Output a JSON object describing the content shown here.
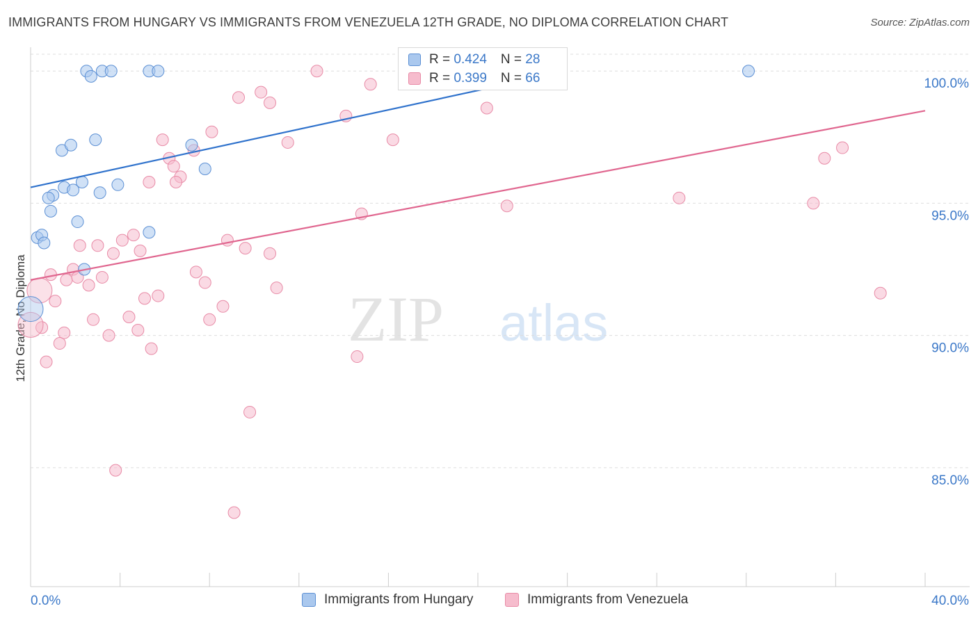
{
  "title": "IMMIGRANTS FROM HUNGARY VS IMMIGRANTS FROM VENEZUELA 12TH GRADE, NO DIPLOMA CORRELATION CHART",
  "source": "Source: ZipAtlas.com",
  "watermark": {
    "zip": "ZIP",
    "atlas": "atlas"
  },
  "legend": {
    "hungary": {
      "r_label": "R = ",
      "r_value": "0.424",
      "n_label": "N = ",
      "n_value": "28"
    },
    "venezuela": {
      "r_label": "R = ",
      "r_value": "0.399",
      "n_label": "N = ",
      "n_value": "66"
    }
  },
  "colors": {
    "hungary_fill": "#aac8ee",
    "hungary_stroke": "#5b8fd4",
    "hungary_line": "#2f72cc",
    "venezuela_fill": "#f6bccd",
    "venezuela_stroke": "#e88aa6",
    "venezuela_line": "#e0668f",
    "axis_text": "#3b78c8",
    "grid": "#dddddd"
  },
  "chart_data": {
    "type": "scatter",
    "title": "IMMIGRANTS FROM HUNGARY VS IMMIGRANTS FROM VENEZUELA 12TH GRADE, NO DIPLOMA CORRELATION CHART",
    "xlabel": "",
    "ylabel": "12th Grade, No Diploma",
    "xlim": [
      0,
      40
    ],
    "ylim": [
      80.5,
      100.9
    ],
    "x_tick_labels": [
      "0.0%",
      "40.0%"
    ],
    "y_ticks": [
      85,
      90,
      95,
      100
    ],
    "y_tick_labels": [
      "85.0%",
      "90.0%",
      "95.0%",
      "100.0%"
    ],
    "grid": true,
    "legend_position": "top-center",
    "series": [
      {
        "name": "Immigrants from Hungary",
        "R": 0.424,
        "N": 28,
        "trend": {
          "x": [
            0,
            24
          ],
          "y": [
            95.6,
            100
          ]
        },
        "points": [
          {
            "x": 2.5,
            "y": 100.0
          },
          {
            "x": 2.7,
            "y": 99.8
          },
          {
            "x": 3.2,
            "y": 100.0
          },
          {
            "x": 3.6,
            "y": 100.0
          },
          {
            "x": 5.3,
            "y": 100.0
          },
          {
            "x": 5.7,
            "y": 100.0
          },
          {
            "x": 32.1,
            "y": 100.0
          },
          {
            "x": 2.9,
            "y": 97.4
          },
          {
            "x": 1.4,
            "y": 97.0
          },
          {
            "x": 1.8,
            "y": 97.2
          },
          {
            "x": 7.2,
            "y": 97.2
          },
          {
            "x": 7.8,
            "y": 96.3
          },
          {
            "x": 2.3,
            "y": 95.8
          },
          {
            "x": 1.5,
            "y": 95.6
          },
          {
            "x": 1.9,
            "y": 95.5
          },
          {
            "x": 1.0,
            "y": 95.3
          },
          {
            "x": 0.8,
            "y": 95.2
          },
          {
            "x": 3.1,
            "y": 95.4
          },
          {
            "x": 3.9,
            "y": 95.7
          },
          {
            "x": 0.9,
            "y": 94.7
          },
          {
            "x": 2.1,
            "y": 94.3
          },
          {
            "x": 5.3,
            "y": 93.9
          },
          {
            "x": 0.3,
            "y": 93.7
          },
          {
            "x": 0.5,
            "y": 93.8
          },
          {
            "x": 0.6,
            "y": 93.5
          },
          {
            "x": 2.4,
            "y": 92.5
          },
          {
            "x": 0.0,
            "y": 91.0,
            "large": true
          }
        ]
      },
      {
        "name": "Immigrants from Venezuela",
        "R": 0.399,
        "N": 66,
        "trend": {
          "x": [
            0,
            40
          ],
          "y": [
            92.1,
            98.5
          ]
        },
        "points": [
          {
            "x": 12.8,
            "y": 100.0
          },
          {
            "x": 22.3,
            "y": 100.0
          },
          {
            "x": 15.2,
            "y": 99.5
          },
          {
            "x": 10.3,
            "y": 99.2
          },
          {
            "x": 9.3,
            "y": 99.0
          },
          {
            "x": 10.7,
            "y": 98.8
          },
          {
            "x": 14.1,
            "y": 98.3
          },
          {
            "x": 20.4,
            "y": 98.6
          },
          {
            "x": 8.1,
            "y": 97.7
          },
          {
            "x": 5.9,
            "y": 97.4
          },
          {
            "x": 11.5,
            "y": 97.3
          },
          {
            "x": 16.2,
            "y": 97.4
          },
          {
            "x": 7.3,
            "y": 97.0
          },
          {
            "x": 6.2,
            "y": 96.7
          },
          {
            "x": 6.4,
            "y": 96.4
          },
          {
            "x": 6.7,
            "y": 96.0
          },
          {
            "x": 5.3,
            "y": 95.8
          },
          {
            "x": 6.5,
            "y": 95.8
          },
          {
            "x": 35.5,
            "y": 96.7
          },
          {
            "x": 36.3,
            "y": 97.1
          },
          {
            "x": 21.3,
            "y": 94.9
          },
          {
            "x": 29.0,
            "y": 95.2
          },
          {
            "x": 35.0,
            "y": 95.0
          },
          {
            "x": 14.8,
            "y": 94.6
          },
          {
            "x": 4.6,
            "y": 93.8
          },
          {
            "x": 4.1,
            "y": 93.6
          },
          {
            "x": 8.8,
            "y": 93.6
          },
          {
            "x": 3.0,
            "y": 93.4
          },
          {
            "x": 3.7,
            "y": 93.1
          },
          {
            "x": 4.9,
            "y": 93.2
          },
          {
            "x": 9.6,
            "y": 93.3
          },
          {
            "x": 10.7,
            "y": 93.1
          },
          {
            "x": 2.2,
            "y": 93.4
          },
          {
            "x": 1.9,
            "y": 92.5
          },
          {
            "x": 0.9,
            "y": 92.3
          },
          {
            "x": 1.6,
            "y": 92.1
          },
          {
            "x": 2.1,
            "y": 92.2
          },
          {
            "x": 2.6,
            "y": 91.9
          },
          {
            "x": 3.2,
            "y": 92.2
          },
          {
            "x": 7.4,
            "y": 92.4
          },
          {
            "x": 7.8,
            "y": 92.0
          },
          {
            "x": 11.0,
            "y": 91.8
          },
          {
            "x": 0.4,
            "y": 91.7,
            "large": true
          },
          {
            "x": 1.1,
            "y": 91.3
          },
          {
            "x": 5.1,
            "y": 91.4
          },
          {
            "x": 5.7,
            "y": 91.5
          },
          {
            "x": 8.6,
            "y": 91.1
          },
          {
            "x": 2.8,
            "y": 90.6
          },
          {
            "x": 4.4,
            "y": 90.7
          },
          {
            "x": 8.0,
            "y": 90.6
          },
          {
            "x": 0.5,
            "y": 90.3
          },
          {
            "x": 1.5,
            "y": 90.1
          },
          {
            "x": 3.5,
            "y": 90.0
          },
          {
            "x": 4.8,
            "y": 90.2
          },
          {
            "x": 1.3,
            "y": 89.7
          },
          {
            "x": 5.4,
            "y": 89.5
          },
          {
            "x": 0.7,
            "y": 89.0
          },
          {
            "x": 14.6,
            "y": 89.2
          },
          {
            "x": 38.0,
            "y": 91.6
          },
          {
            "x": 9.8,
            "y": 87.1
          },
          {
            "x": 3.8,
            "y": 84.9
          },
          {
            "x": 9.1,
            "y": 83.3
          },
          {
            "x": 0.0,
            "y": 90.4,
            "large": true
          }
        ]
      }
    ]
  }
}
